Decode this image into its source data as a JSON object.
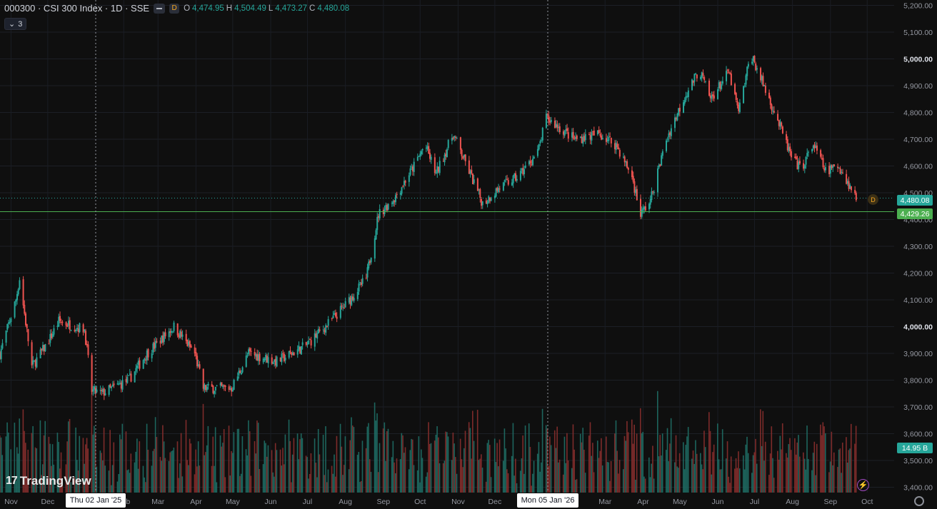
{
  "header": {
    "symbol": "000300 · CSI 300 Index · 1D · SSE",
    "badge": "D",
    "o_label": "O",
    "o_value": "4,474.95",
    "h_label": "H",
    "h_value": "4,504.49",
    "l_label": "L",
    "l_value": "4,473.27",
    "c_label": "C",
    "c_value": "4,480.08"
  },
  "indicator_toggle": {
    "count": "3"
  },
  "branding": {
    "logo_text": "TradingView"
  },
  "price_tags": {
    "last": "4,480.08",
    "line": "4,429.26",
    "volume": "14.95 B"
  },
  "crosshair_labels": {
    "left": "Thu 02 Jan '25",
    "right": "Mon 05 Jan '26"
  },
  "icons": {
    "settings": "gear-icon",
    "replay": "lightning-icon",
    "dividend": "D"
  },
  "colors": {
    "up": "#26a69a",
    "down": "#ef5350",
    "line": "#4caf50",
    "background": "#0f0f0f"
  },
  "chart_data": {
    "type": "candlestick",
    "title": "000300 · CSI 300 Index · 1D · SSE",
    "y_ticks": [
      "5,200.00",
      "5,100.00",
      "5,000.00",
      "4,900.00",
      "4,800.00",
      "4,700.00",
      "4,600.00",
      "4,500.00",
      "4,400.00",
      "4,300.00",
      "4,200.00",
      "4,100.00",
      "4,000.00",
      "3,900.00",
      "3,800.00",
      "3,700.00",
      "3,600.00",
      "3,500.00",
      "3,400.00"
    ],
    "y_tick_values": [
      5200,
      5100,
      5000,
      4900,
      4800,
      4700,
      4600,
      4500,
      4400,
      4300,
      4200,
      4100,
      4000,
      3900,
      3800,
      3700,
      3600,
      3500,
      3400
    ],
    "bold_ticks": [
      5000,
      4000
    ],
    "ylim": [
      3380,
      5220
    ],
    "x_ticks": [
      "Nov",
      "Dec",
      "Feb",
      "Mar",
      "Apr",
      "May",
      "Jun",
      "Jul",
      "Aug",
      "Sep",
      "Oct",
      "Nov",
      "Dec",
      "Mar",
      "Apr",
      "May",
      "Jun",
      "Jul",
      "Aug",
      "Sep",
      "Oct"
    ],
    "x_tick_dates": [
      "2024-11-01",
      "2024-12-01",
      "2025-02-01",
      "2025-03-01",
      "2025-04-01",
      "2025-05-01",
      "2025-06-01",
      "2025-07-01",
      "2025-08-01",
      "2025-09-01",
      "2025-10-01",
      "2025-11-01",
      "2025-12-01",
      "2026-03-01",
      "2026-04-01",
      "2026-05-01",
      "2026-06-01",
      "2026-07-01",
      "2026-08-01",
      "2026-09-01",
      "2026-10-01"
    ],
    "x_range": [
      "2024-10-23",
      "2026-10-23"
    ],
    "last_close": 4480.08,
    "horizontal_line": 4429.26,
    "close_path": [
      [
        "2024-10-23",
        3900
      ],
      [
        "2024-11-05",
        4100
      ],
      [
        "2024-11-08",
        4180
      ],
      [
        "2024-11-18",
        3850
      ],
      [
        "2024-12-01",
        3940
      ],
      [
        "2024-12-10",
        4020
      ],
      [
        "2024-12-31",
        3990
      ],
      [
        "2025-01-06",
        3760
      ],
      [
        "2025-01-14",
        3750
      ],
      [
        "2025-02-05",
        3800
      ],
      [
        "2025-02-20",
        3900
      ],
      [
        "2025-03-14",
        4000
      ],
      [
        "2025-03-31",
        3900
      ],
      [
        "2025-04-07",
        3770
      ],
      [
        "2025-04-30",
        3770
      ],
      [
        "2025-05-14",
        3900
      ],
      [
        "2025-06-06",
        3870
      ],
      [
        "2025-06-30",
        3930
      ],
      [
        "2025-07-20",
        4020
      ],
      [
        "2025-08-01",
        4080
      ],
      [
        "2025-08-18",
        4180
      ],
      [
        "2025-08-28",
        4420
      ],
      [
        "2025-09-10",
        4480
      ],
      [
        "2025-09-26",
        4600
      ],
      [
        "2025-10-05",
        4680
      ],
      [
        "2025-10-14",
        4570
      ],
      [
        "2025-10-28",
        4720
      ],
      [
        "2025-11-10",
        4580
      ],
      [
        "2025-11-21",
        4460
      ],
      [
        "2025-12-05",
        4520
      ],
      [
        "2025-12-20",
        4560
      ],
      [
        "2026-01-05",
        4650
      ],
      [
        "2026-01-12",
        4780
      ],
      [
        "2026-02-04",
        4700
      ],
      [
        "2026-02-24",
        4720
      ],
      [
        "2026-03-10",
        4680
      ],
      [
        "2026-03-23",
        4560
      ],
      [
        "2026-03-30",
        4420
      ],
      [
        "2026-04-07",
        4470
      ],
      [
        "2026-04-20",
        4700
      ],
      [
        "2026-05-05",
        4860
      ],
      [
        "2026-05-17",
        4960
      ],
      [
        "2026-05-26",
        4850
      ],
      [
        "2026-06-10",
        4950
      ],
      [
        "2026-06-18",
        4800
      ],
      [
        "2026-06-28",
        5020
      ],
      [
        "2026-07-05",
        4940
      ],
      [
        "2026-07-20",
        4770
      ],
      [
        "2026-08-01",
        4620
      ],
      [
        "2026-08-08",
        4590
      ],
      [
        "2026-08-18",
        4680
      ],
      [
        "2026-08-28",
        4580
      ],
      [
        "2026-09-08",
        4600
      ],
      [
        "2026-09-16",
        4530
      ],
      [
        "2026-09-22",
        4480
      ]
    ],
    "volume_range_pct": [
      0.05,
      0.55
    ]
  }
}
